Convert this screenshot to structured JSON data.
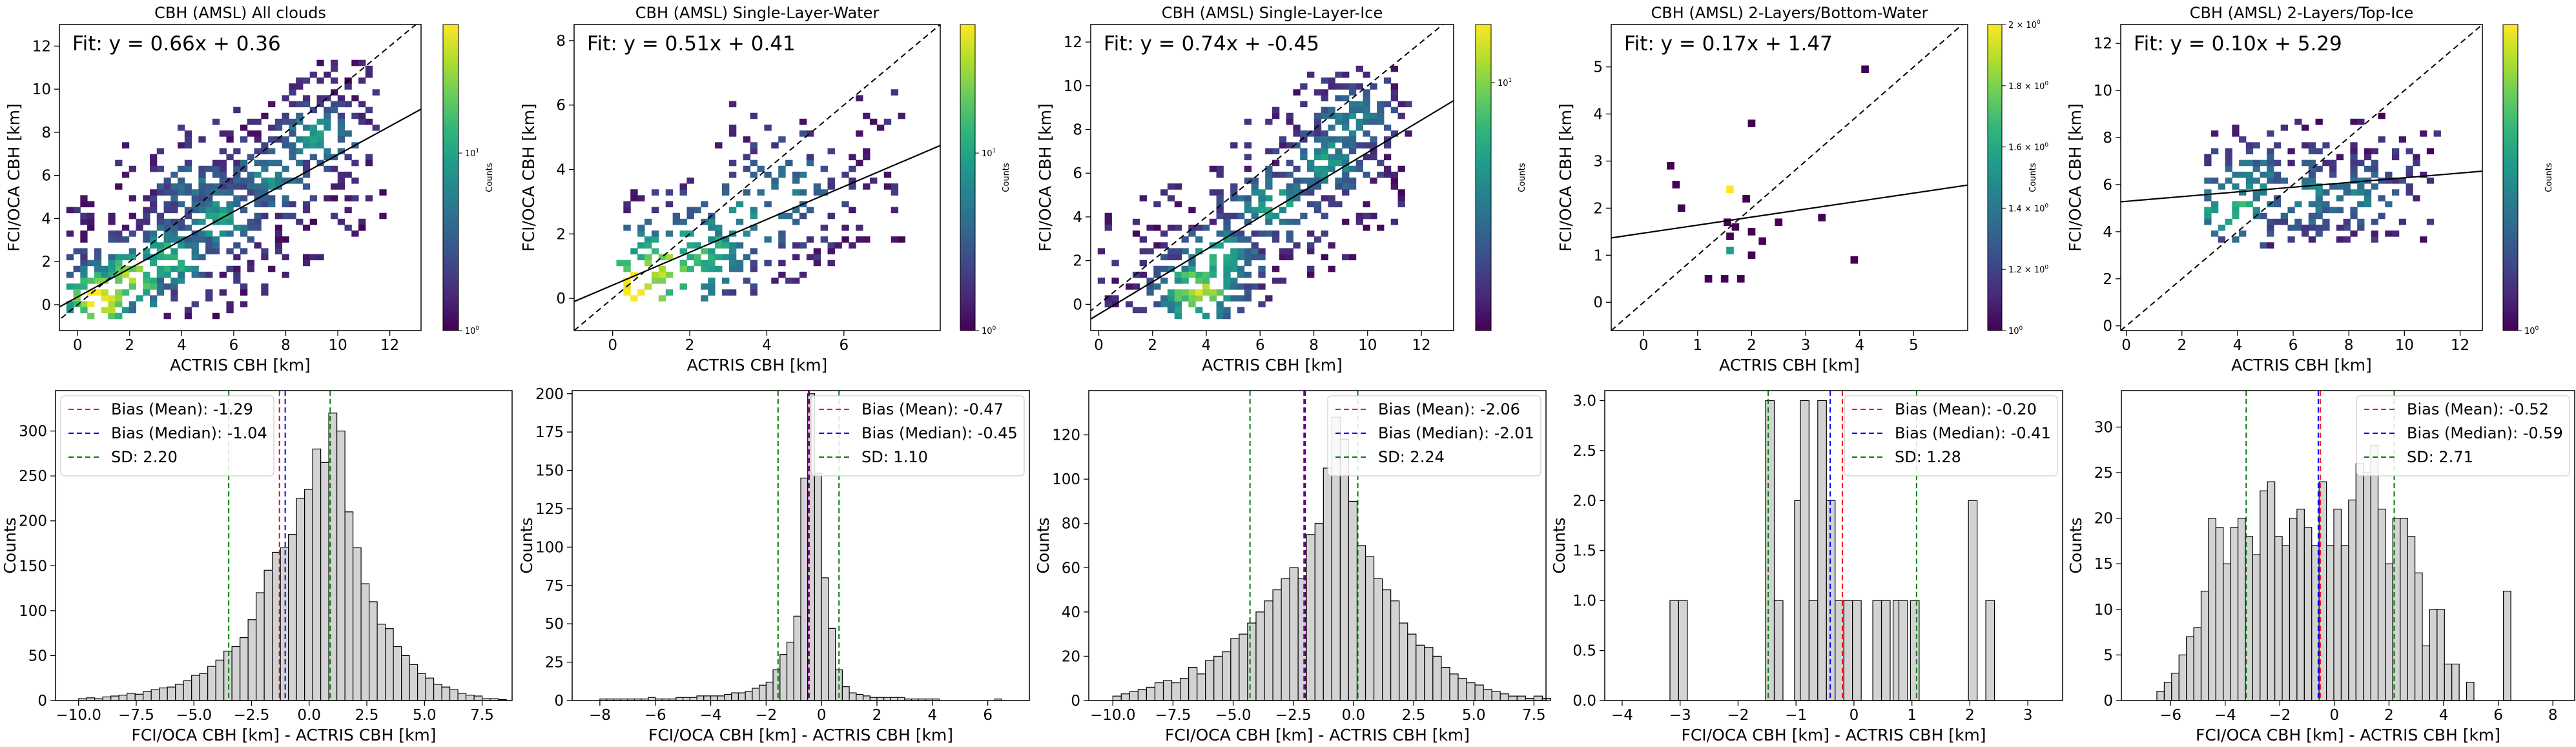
{
  "chart_data": [
    {
      "type": "heatmap",
      "title": "CBH (AMSL) All clouds",
      "xlabel": "ACTRIS CBH [km]",
      "ylabel": "FCI/OCA CBH [km]",
      "annotation": "Fit: y = 0.66x + 0.36",
      "fit": {
        "slope": 0.66,
        "intercept": 0.36
      },
      "xlim": [
        -0.7,
        13.2
      ],
      "ylim": [
        -1.2,
        13.0
      ],
      "xticks": [
        0,
        2,
        4,
        6,
        8,
        10,
        12
      ],
      "yticks": [
        0,
        2,
        4,
        6,
        8,
        10,
        12
      ],
      "colorbar": {
        "label": "Counts",
        "scale": "log",
        "ticks": [
          "10^0",
          "10^1"
        ],
        "colormap": "viridis"
      },
      "density_centers": [
        [
          0.8,
          0.3,
          3.0
        ],
        [
          2.0,
          1.2,
          2.4
        ],
        [
          3.5,
          2.2,
          1.8
        ],
        [
          5.5,
          4.0,
          1.5
        ],
        [
          7.5,
          6.0,
          1.3
        ],
        [
          9.3,
          7.8,
          1.4
        ],
        [
          4.5,
          5.5,
          0.8
        ]
      ],
      "extent": {
        "x": [
          -0.3,
          11.8
        ],
        "y": [
          -0.5,
          11.8
        ]
      },
      "cells": 520
    },
    {
      "type": "heatmap",
      "title": "CBH (AMSL) Single-Layer-Water",
      "xlabel": "ACTRIS CBH [km]",
      "ylabel": "FCI/OCA CBH [km]",
      "annotation": "Fit: y = 0.51x + 0.41",
      "fit": {
        "slope": 0.51,
        "intercept": 0.41
      },
      "xlim": [
        -1.0,
        8.5
      ],
      "ylim": [
        -1.0,
        8.5
      ],
      "xticks": [
        0,
        2,
        4,
        6
      ],
      "yticks": [
        0,
        2,
        4,
        6,
        8
      ],
      "colorbar": {
        "label": "Counts",
        "scale": "log",
        "ticks": [
          "10^0",
          "10^1"
        ],
        "colormap": "viridis"
      },
      "density_centers": [
        [
          0.6,
          0.3,
          3.0
        ],
        [
          1.3,
          0.8,
          2.5
        ],
        [
          2.2,
          1.4,
          1.8
        ],
        [
          3.5,
          2.5,
          1.2
        ],
        [
          4.5,
          3.5,
          0.9
        ]
      ],
      "extent": {
        "x": [
          0.2,
          7.5
        ],
        "y": [
          0.0,
          6.8
        ]
      },
      "cells": 230
    },
    {
      "type": "heatmap",
      "title": "CBH (AMSL) Single-Layer-Ice",
      "xlabel": "ACTRIS CBH [km]",
      "ylabel": "FCI/OCA CBH [km]",
      "annotation": "Fit: y = 0.74x + -0.45",
      "fit": {
        "slope": 0.74,
        "intercept": -0.45
      },
      "xlim": [
        -0.3,
        13.2
      ],
      "ylim": [
        -1.2,
        12.8
      ],
      "xticks": [
        0,
        2,
        4,
        6,
        8,
        10,
        12
      ],
      "yticks": [
        0,
        2,
        4,
        6,
        8,
        10,
        12
      ],
      "colorbar": {
        "label": "Counts",
        "scale": "log",
        "ticks": [
          "10^1"
        ],
        "colormap": "viridis"
      },
      "density_centers": [
        [
          3.7,
          0.6,
          2.6
        ],
        [
          4.5,
          2.0,
          1.8
        ],
        [
          6.5,
          4.5,
          1.6
        ],
        [
          8.5,
          6.5,
          1.4
        ],
        [
          9.5,
          8.5,
          1.2
        ]
      ],
      "extent": {
        "x": [
          0.0,
          11.5
        ],
        "y": [
          -0.5,
          11.0
        ]
      },
      "cells": 430
    },
    {
      "type": "heatmap",
      "title": "CBH (AMSL) 2-Layers/Bottom-Water",
      "xlabel": "ACTRIS CBH [km]",
      "ylabel": "FCI/OCA CBH [km]",
      "annotation": "Fit: y = 0.17x + 1.47",
      "fit": {
        "slope": 0.17,
        "intercept": 1.47
      },
      "xlim": [
        -0.6,
        6.0
      ],
      "ylim": [
        -0.6,
        5.9
      ],
      "xticks": [
        0,
        1,
        2,
        3,
        4,
        5
      ],
      "yticks": [
        0,
        1,
        2,
        3,
        4,
        5
      ],
      "colorbar": {
        "label": "Counts",
        "scale": "log",
        "ticks": [
          "2 × 10^0",
          "1.8 × 10^0",
          "1.6 × 10^0",
          "1.4 × 10^0",
          "1.2 × 10^0",
          "10^0"
        ],
        "colormap": "viridis"
      },
      "points": [
        [
          1.6,
          2.4,
          1.0
        ],
        [
          1.6,
          1.1,
          0.55
        ],
        [
          1.55,
          1.7,
          0.0
        ],
        [
          1.7,
          1.6,
          0.0
        ],
        [
          0.5,
          2.9,
          0.0
        ],
        [
          0.6,
          2.5,
          0.0
        ],
        [
          1.5,
          0.5,
          0.0
        ],
        [
          1.2,
          0.5,
          0.0
        ],
        [
          2.0,
          3.8,
          0.0
        ],
        [
          2.0,
          1.5,
          0.0
        ],
        [
          2.2,
          1.3,
          0.0
        ],
        [
          4.1,
          4.95,
          0.0
        ],
        [
          3.3,
          1.8,
          0.0
        ],
        [
          3.9,
          0.9,
          0.0
        ],
        [
          1.6,
          1.4,
          0.0
        ],
        [
          2.0,
          1.0,
          0.0
        ],
        [
          1.8,
          0.5,
          0.0
        ],
        [
          2.5,
          1.7,
          0.0
        ],
        [
          0.7,
          2.0,
          0.0
        ],
        [
          1.9,
          2.2,
          0.0
        ]
      ]
    },
    {
      "type": "heatmap",
      "title": "CBH (AMSL) 2-Layers/Top-Ice",
      "xlabel": "ACTRIS CBH [km]",
      "ylabel": "FCI/OCA CBH [km]",
      "annotation": "Fit: y = 0.10x + 5.29",
      "fit": {
        "slope": 0.1,
        "intercept": 5.29
      },
      "xlim": [
        -0.2,
        12.8
      ],
      "ylim": [
        -0.2,
        12.8
      ],
      "xticks": [
        0,
        2,
        4,
        6,
        8,
        10,
        12
      ],
      "yticks": [
        0,
        2,
        4,
        6,
        8,
        10,
        12
      ],
      "colorbar": {
        "label": "Counts",
        "scale": "log",
        "ticks": [
          "10^0"
        ],
        "colormap": "viridis"
      },
      "density_centers": [
        [
          3.8,
          5.0,
          1.8
        ],
        [
          4.5,
          6.0,
          1.3
        ],
        [
          6.5,
          5.5,
          1.2
        ],
        [
          8.5,
          5.5,
          1.1
        ]
      ],
      "extent": {
        "x": [
          2.8,
          11.2
        ],
        "y": [
          3.5,
          10.8
        ]
      },
      "cells": 210
    },
    {
      "type": "bar",
      "subtype": "histogram",
      "xlabel": "FCI/OCA CBH [km] - ACTRIS CBH [km]",
      "ylabel": "Counts",
      "xlim": [
        -11.0,
        8.8
      ],
      "ylim": [
        0,
        345
      ],
      "xticks": [
        -10.0,
        -7.5,
        -5.0,
        -2.5,
        0.0,
        2.5,
        5.0,
        7.5
      ],
      "xtick_labels": [
        "−10.0",
        "−7.5",
        "−5.0",
        "−2.5",
        "0.0",
        "2.5",
        "5.0",
        "7.5"
      ],
      "yticks": [
        0,
        50,
        100,
        150,
        200,
        250,
        300
      ],
      "bin_start": -10.0,
      "bin_width": 0.35,
      "values": [
        2,
        3,
        2,
        4,
        5,
        6,
        8,
        7,
        10,
        12,
        14,
        15,
        18,
        22,
        28,
        30,
        38,
        45,
        55,
        60,
        70,
        90,
        120,
        145,
        165,
        170,
        185,
        225,
        235,
        280,
        265,
        320,
        300,
        210,
        170,
        130,
        110,
        85,
        80,
        60,
        50,
        40,
        30,
        25,
        18,
        15,
        12,
        8,
        6,
        5,
        2,
        2,
        1
      ],
      "lines": {
        "mean": -1.29,
        "median": -1.04,
        "sd_low": -3.49,
        "sd_high": 0.91
      },
      "legend": [
        "Bias (Mean): -1.29",
        "Bias (Median): -1.04",
        "SD: 2.20"
      ],
      "legend_position": "top-left"
    },
    {
      "type": "bar",
      "subtype": "histogram",
      "xlabel": "FCI/OCA CBH [km] - ACTRIS CBH [km]",
      "ylabel": "Counts",
      "xlim": [
        -9.0,
        7.5
      ],
      "ylim": [
        0,
        202
      ],
      "xticks": [
        -8,
        -6,
        -4,
        -2,
        0,
        2,
        4,
        6
      ],
      "xtick_labels": [
        "−8",
        "−6",
        "−4",
        "−2",
        "0",
        "2",
        "4",
        "6"
      ],
      "yticks": [
        0,
        25,
        50,
        75,
        100,
        125,
        150,
        175,
        200
      ],
      "bin_start": -8.0,
      "bin_width": 0.25,
      "values": [
        1,
        1,
        1,
        1,
        1,
        1,
        1,
        2,
        1,
        1,
        1,
        2,
        2,
        2,
        3,
        3,
        3,
        3,
        4,
        5,
        5,
        6,
        8,
        10,
        12,
        20,
        30,
        38,
        55,
        145,
        200,
        148,
        80,
        47,
        20,
        9,
        5,
        4,
        3,
        2,
        2,
        2,
        2,
        2,
        1,
        1,
        1,
        1,
        1,
        0,
        0,
        0,
        0,
        0,
        0,
        0,
        0,
        1
      ],
      "lines": {
        "mean": -0.47,
        "median": -0.45,
        "sd_low": -1.57,
        "sd_high": 0.63
      },
      "legend": [
        "Bias (Mean): -0.47",
        "Bias (Median): -0.45",
        "SD: 1.10"
      ],
      "legend_position": "top-right"
    },
    {
      "type": "bar",
      "subtype": "histogram",
      "xlabel": "FCI/OCA CBH [km] - ACTRIS CBH [km]",
      "ylabel": "Counts",
      "xlim": [
        -11.0,
        8.0
      ],
      "ylim": [
        0,
        140
      ],
      "xticks": [
        -10.0,
        -7.5,
        -5.0,
        -2.5,
        0.0,
        2.5,
        5.0,
        7.5
      ],
      "xtick_labels": [
        "−10.0",
        "−7.5",
        "−5.0",
        "−2.5",
        "0.0",
        "2.5",
        "5.0",
        "7.5"
      ],
      "yticks": [
        0,
        20,
        40,
        60,
        80,
        100,
        120
      ],
      "bin_start": -10.0,
      "bin_width": 0.35,
      "values": [
        2,
        3,
        4,
        5,
        6,
        8,
        9,
        8,
        10,
        15,
        12,
        18,
        20,
        22,
        28,
        30,
        35,
        40,
        45,
        50,
        55,
        60,
        55,
        75,
        80,
        105,
        128,
        118,
        90,
        70,
        65,
        55,
        50,
        45,
        35,
        30,
        25,
        24,
        20,
        15,
        12,
        10,
        8,
        7,
        5,
        4,
        3,
        2,
        2,
        1,
        2,
        1
      ],
      "lines": {
        "mean": -2.06,
        "median": -2.01,
        "sd_low": -4.3,
        "sd_high": 0.18
      },
      "legend": [
        "Bias (Mean): -2.06",
        "Bias (Median): -2.01",
        "SD: 2.24"
      ],
      "legend_position": "top-right"
    },
    {
      "type": "bar",
      "subtype": "histogram",
      "xlabel": "FCI/OCA CBH [km] - ACTRIS CBH [km]",
      "ylabel": "Counts",
      "xlim": [
        -4.3,
        3.6
      ],
      "ylim": [
        0,
        3.1
      ],
      "xticks": [
        -4,
        -3,
        -2,
        -1,
        0,
        1,
        2,
        3
      ],
      "xtick_labels": [
        "−4",
        "−3",
        "−2",
        "−1",
        "0",
        "1",
        "2",
        "3"
      ],
      "yticks": [
        0.0,
        0.5,
        1.0,
        1.5,
        2.0,
        2.5,
        3.0
      ],
      "ytick_labels": [
        "0.0",
        "0.5",
        "1.0",
        "1.5",
        "2.0",
        "2.5",
        "3.0"
      ],
      "bars": [
        [
          -3.1,
          1
        ],
        [
          -2.95,
          1
        ],
        [
          -1.45,
          3
        ],
        [
          -1.3,
          1
        ],
        [
          -0.95,
          2
        ],
        [
          -0.85,
          3
        ],
        [
          -0.7,
          1
        ],
        [
          -0.55,
          3
        ],
        [
          -0.4,
          2
        ],
        [
          -0.25,
          1
        ],
        [
          -0.1,
          1
        ],
        [
          0.05,
          1
        ],
        [
          0.4,
          1
        ],
        [
          0.55,
          1
        ],
        [
          0.75,
          1
        ],
        [
          0.85,
          1
        ],
        [
          1.05,
          1
        ],
        [
          2.05,
          2
        ],
        [
          2.35,
          1
        ]
      ],
      "bar_width": 0.15,
      "lines": {
        "mean": -0.2,
        "median": -0.41,
        "sd_low": -1.48,
        "sd_high": 1.08
      },
      "legend": [
        "Bias (Mean): -0.20",
        "Bias (Median): -0.41",
        "SD: 1.28"
      ],
      "legend_position": "top-right"
    },
    {
      "type": "bar",
      "subtype": "histogram",
      "xlabel": "FCI/OCA CBH [km] - ACTRIS CBH [km]",
      "ylabel": "Counts",
      "xlim": [
        -7.8,
        8.8
      ],
      "ylim": [
        0,
        34
      ],
      "xticks": [
        -6,
        -4,
        -2,
        0,
        2,
        4,
        6,
        8
      ],
      "xtick_labels": [
        "−6",
        "−4",
        "−2",
        "0",
        "2",
        "4",
        "6",
        "8"
      ],
      "yticks": [
        0,
        5,
        10,
        15,
        20,
        25,
        30
      ],
      "bin_start": -6.5,
      "bin_width": 0.27,
      "values": [
        1,
        2,
        3,
        5,
        7,
        8,
        12,
        20,
        19,
        15,
        19,
        20,
        18,
        16,
        23,
        24,
        18,
        17,
        20,
        21,
        19,
        17,
        24,
        17,
        21,
        17,
        22,
        26,
        25,
        28,
        21,
        15,
        20,
        20,
        18,
        14,
        6,
        10,
        10,
        4,
        4,
        0,
        2,
        0,
        0,
        0,
        0,
        12
      ],
      "lines": {
        "mean": -0.52,
        "median": -0.59,
        "sd_low": -3.23,
        "sd_high": 2.19
      },
      "legend": [
        "Bias (Mean): -0.52",
        "Bias (Median): -0.59",
        "SD: 2.71"
      ],
      "legend_position": "top-right"
    }
  ]
}
